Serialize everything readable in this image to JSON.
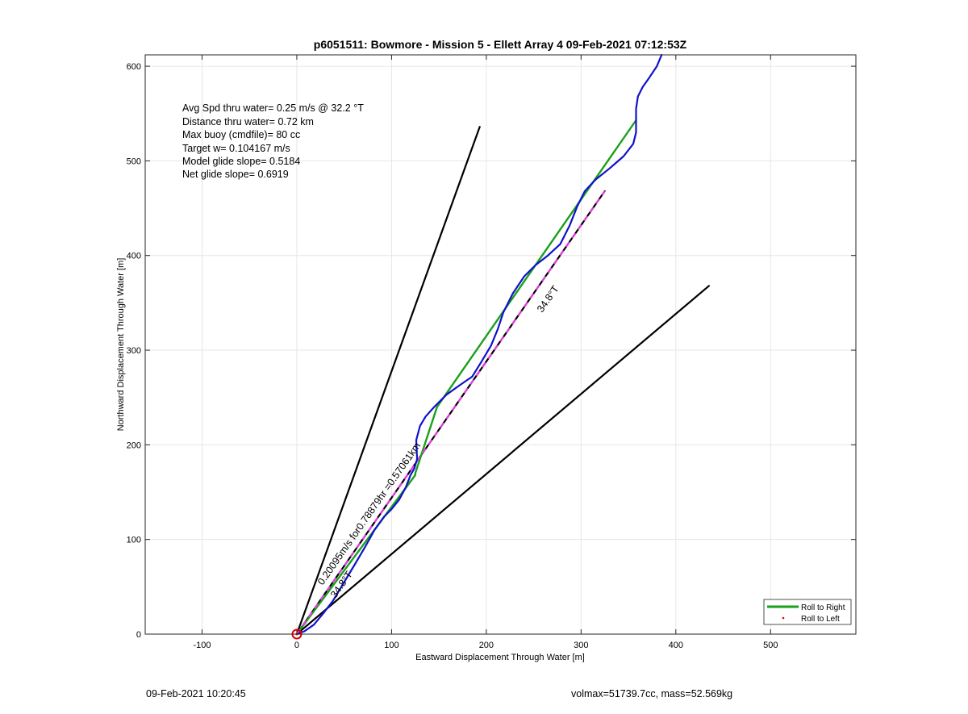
{
  "chart_data": {
    "type": "line",
    "title": "p6051511: Bowmore - Mission 5 - Ellett Array 4 09-Feb-2021 07:12:53Z",
    "xlabel": "Eastward Displacement Through Water [m]",
    "ylabel": "Northward Displacement Through Water [m]",
    "xlim": [
      -160,
      590
    ],
    "ylim": [
      0,
      612
    ],
    "xticks": [
      -100,
      0,
      100,
      200,
      300,
      400,
      500
    ],
    "yticks": [
      0,
      100,
      200,
      300,
      400,
      500,
      600
    ],
    "grid": true,
    "legend": {
      "position": "bottom-right",
      "entries": [
        "Roll to Right",
        "Roll to Left"
      ]
    },
    "annotations": [
      "Avg Spd thru water=  0.25 m/s @  32.2 °T",
      "Distance thru water=  0.72 km",
      "Max buoy (cmdfile)= 80 cc",
      "Target w= 0.104167 m/s",
      "Model glide slope= 0.5184",
      "Net glide slope= 0.6919"
    ],
    "line_labels": {
      "speed_label": "0.20095m/s for0.78879hr =0.57061km",
      "heading_label_upper": "34.8°T",
      "heading_label_lower": "34.8°T"
    },
    "series": [
      {
        "role": "cone_left",
        "color": "#000000",
        "x": [
          0,
          193
        ],
        "y": [
          0,
          536
        ]
      },
      {
        "role": "cone_right",
        "color": "#000000",
        "x": [
          0,
          435
        ],
        "y": [
          0,
          368
        ]
      },
      {
        "role": "drift_vector",
        "color": "#000000",
        "x": [
          0,
          325
        ],
        "y": [
          0,
          468
        ]
      },
      {
        "name": "Roll to Right",
        "color": "#1aa01a",
        "x": [
          0,
          125,
          125,
          148,
          358
        ],
        "y": [
          0,
          168,
          170,
          240,
          543
        ]
      },
      {
        "role": "drift_dashed",
        "color": "#e83be8",
        "x": [
          0,
          325
        ],
        "y": [
          0,
          468
        ]
      },
      {
        "role": "trajectory",
        "color": "#1111cc",
        "x": [
          0,
          8,
          18,
          28,
          38,
          50,
          62,
          72,
          82,
          92,
          100,
          108,
          115,
          120,
          124,
          127,
          126,
          130,
          136,
          145,
          158,
          172,
          185,
          195,
          205,
          212,
          218,
          228,
          240,
          252,
          265,
          278,
          288,
          296,
          304,
          315,
          330,
          345,
          355,
          358,
          358,
          360,
          365,
          372,
          380,
          385
        ],
        "y": [
          0,
          3,
          10,
          22,
          35,
          55,
          75,
          92,
          110,
          124,
          132,
          142,
          155,
          168,
          175,
          185,
          205,
          220,
          230,
          240,
          253,
          263,
          272,
          288,
          305,
          322,
          340,
          360,
          378,
          390,
          400,
          412,
          432,
          452,
          468,
          480,
          492,
          505,
          518,
          530,
          555,
          568,
          578,
          588,
          600,
          612
        ]
      }
    ],
    "origin_marker": {
      "x": 0,
      "y": 0,
      "color": "#dd0000"
    }
  },
  "footer": {
    "left": "09-Feb-2021 10:20:45",
    "right": "volmax=51739.7cc, mass=52.569kg"
  }
}
